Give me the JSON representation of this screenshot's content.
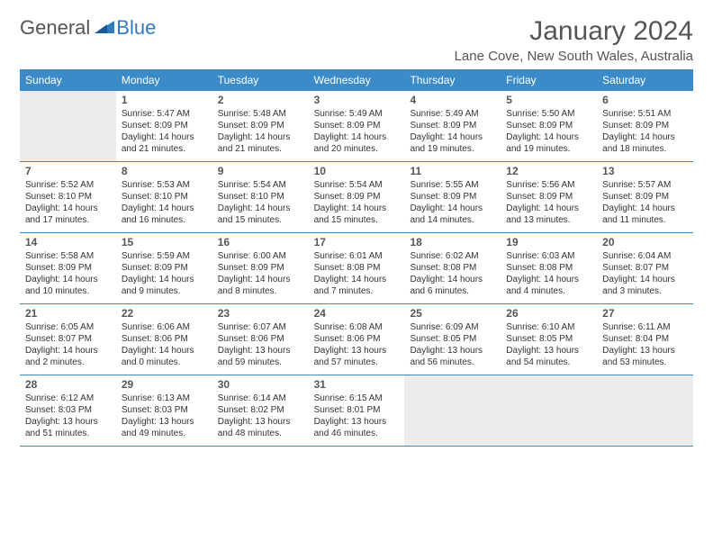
{
  "logo": {
    "general": "General",
    "blue": "Blue"
  },
  "title": "January 2024",
  "location": "Lane Cove, New South Wales, Australia",
  "colors": {
    "header_bg": "#3b8bc8",
    "header_text": "#ffffff",
    "row_border": "#3b8bc8",
    "blank_bg": "#ececec",
    "page_bg": "#ffffff",
    "title_color": "#555555",
    "logo_gray": "#555555",
    "logo_blue": "#2f7bbf",
    "text_color": "#333333",
    "daynum_color": "#555555"
  },
  "typography": {
    "title_fontsize": 30,
    "location_fontsize": 15,
    "dayheader_fontsize": 12,
    "daynum_fontsize": 12,
    "body_fontsize": 10,
    "logo_fontsize": 22
  },
  "day_headers": [
    "Sunday",
    "Monday",
    "Tuesday",
    "Wednesday",
    "Thursday",
    "Friday",
    "Saturday"
  ],
  "weeks": [
    [
      {
        "blank": true
      },
      {
        "day": "1",
        "sunrise": "Sunrise: 5:47 AM",
        "sunset": "Sunset: 8:09 PM",
        "daylight1": "Daylight: 14 hours",
        "daylight2": "and 21 minutes."
      },
      {
        "day": "2",
        "sunrise": "Sunrise: 5:48 AM",
        "sunset": "Sunset: 8:09 PM",
        "daylight1": "Daylight: 14 hours",
        "daylight2": "and 21 minutes."
      },
      {
        "day": "3",
        "sunrise": "Sunrise: 5:49 AM",
        "sunset": "Sunset: 8:09 PM",
        "daylight1": "Daylight: 14 hours",
        "daylight2": "and 20 minutes."
      },
      {
        "day": "4",
        "sunrise": "Sunrise: 5:49 AM",
        "sunset": "Sunset: 8:09 PM",
        "daylight1": "Daylight: 14 hours",
        "daylight2": "and 19 minutes."
      },
      {
        "day": "5",
        "sunrise": "Sunrise: 5:50 AM",
        "sunset": "Sunset: 8:09 PM",
        "daylight1": "Daylight: 14 hours",
        "daylight2": "and 19 minutes."
      },
      {
        "day": "6",
        "sunrise": "Sunrise: 5:51 AM",
        "sunset": "Sunset: 8:09 PM",
        "daylight1": "Daylight: 14 hours",
        "daylight2": "and 18 minutes."
      }
    ],
    [
      {
        "day": "7",
        "sunrise": "Sunrise: 5:52 AM",
        "sunset": "Sunset: 8:10 PM",
        "daylight1": "Daylight: 14 hours",
        "daylight2": "and 17 minutes."
      },
      {
        "day": "8",
        "sunrise": "Sunrise: 5:53 AM",
        "sunset": "Sunset: 8:10 PM",
        "daylight1": "Daylight: 14 hours",
        "daylight2": "and 16 minutes."
      },
      {
        "day": "9",
        "sunrise": "Sunrise: 5:54 AM",
        "sunset": "Sunset: 8:10 PM",
        "daylight1": "Daylight: 14 hours",
        "daylight2": "and 15 minutes."
      },
      {
        "day": "10",
        "sunrise": "Sunrise: 5:54 AM",
        "sunset": "Sunset: 8:09 PM",
        "daylight1": "Daylight: 14 hours",
        "daylight2": "and 15 minutes."
      },
      {
        "day": "11",
        "sunrise": "Sunrise: 5:55 AM",
        "sunset": "Sunset: 8:09 PM",
        "daylight1": "Daylight: 14 hours",
        "daylight2": "and 14 minutes."
      },
      {
        "day": "12",
        "sunrise": "Sunrise: 5:56 AM",
        "sunset": "Sunset: 8:09 PM",
        "daylight1": "Daylight: 14 hours",
        "daylight2": "and 13 minutes."
      },
      {
        "day": "13",
        "sunrise": "Sunrise: 5:57 AM",
        "sunset": "Sunset: 8:09 PM",
        "daylight1": "Daylight: 14 hours",
        "daylight2": "and 11 minutes."
      }
    ],
    [
      {
        "day": "14",
        "sunrise": "Sunrise: 5:58 AM",
        "sunset": "Sunset: 8:09 PM",
        "daylight1": "Daylight: 14 hours",
        "daylight2": "and 10 minutes."
      },
      {
        "day": "15",
        "sunrise": "Sunrise: 5:59 AM",
        "sunset": "Sunset: 8:09 PM",
        "daylight1": "Daylight: 14 hours",
        "daylight2": "and 9 minutes."
      },
      {
        "day": "16",
        "sunrise": "Sunrise: 6:00 AM",
        "sunset": "Sunset: 8:09 PM",
        "daylight1": "Daylight: 14 hours",
        "daylight2": "and 8 minutes."
      },
      {
        "day": "17",
        "sunrise": "Sunrise: 6:01 AM",
        "sunset": "Sunset: 8:08 PM",
        "daylight1": "Daylight: 14 hours",
        "daylight2": "and 7 minutes."
      },
      {
        "day": "18",
        "sunrise": "Sunrise: 6:02 AM",
        "sunset": "Sunset: 8:08 PM",
        "daylight1": "Daylight: 14 hours",
        "daylight2": "and 6 minutes."
      },
      {
        "day": "19",
        "sunrise": "Sunrise: 6:03 AM",
        "sunset": "Sunset: 8:08 PM",
        "daylight1": "Daylight: 14 hours",
        "daylight2": "and 4 minutes."
      },
      {
        "day": "20",
        "sunrise": "Sunrise: 6:04 AM",
        "sunset": "Sunset: 8:07 PM",
        "daylight1": "Daylight: 14 hours",
        "daylight2": "and 3 minutes."
      }
    ],
    [
      {
        "day": "21",
        "sunrise": "Sunrise: 6:05 AM",
        "sunset": "Sunset: 8:07 PM",
        "daylight1": "Daylight: 14 hours",
        "daylight2": "and 2 minutes."
      },
      {
        "day": "22",
        "sunrise": "Sunrise: 6:06 AM",
        "sunset": "Sunset: 8:06 PM",
        "daylight1": "Daylight: 14 hours",
        "daylight2": "and 0 minutes."
      },
      {
        "day": "23",
        "sunrise": "Sunrise: 6:07 AM",
        "sunset": "Sunset: 8:06 PM",
        "daylight1": "Daylight: 13 hours",
        "daylight2": "and 59 minutes."
      },
      {
        "day": "24",
        "sunrise": "Sunrise: 6:08 AM",
        "sunset": "Sunset: 8:06 PM",
        "daylight1": "Daylight: 13 hours",
        "daylight2": "and 57 minutes."
      },
      {
        "day": "25",
        "sunrise": "Sunrise: 6:09 AM",
        "sunset": "Sunset: 8:05 PM",
        "daylight1": "Daylight: 13 hours",
        "daylight2": "and 56 minutes."
      },
      {
        "day": "26",
        "sunrise": "Sunrise: 6:10 AM",
        "sunset": "Sunset: 8:05 PM",
        "daylight1": "Daylight: 13 hours",
        "daylight2": "and 54 minutes."
      },
      {
        "day": "27",
        "sunrise": "Sunrise: 6:11 AM",
        "sunset": "Sunset: 8:04 PM",
        "daylight1": "Daylight: 13 hours",
        "daylight2": "and 53 minutes."
      }
    ],
    [
      {
        "day": "28",
        "sunrise": "Sunrise: 6:12 AM",
        "sunset": "Sunset: 8:03 PM",
        "daylight1": "Daylight: 13 hours",
        "daylight2": "and 51 minutes."
      },
      {
        "day": "29",
        "sunrise": "Sunrise: 6:13 AM",
        "sunset": "Sunset: 8:03 PM",
        "daylight1": "Daylight: 13 hours",
        "daylight2": "and 49 minutes."
      },
      {
        "day": "30",
        "sunrise": "Sunrise: 6:14 AM",
        "sunset": "Sunset: 8:02 PM",
        "daylight1": "Daylight: 13 hours",
        "daylight2": "and 48 minutes."
      },
      {
        "day": "31",
        "sunrise": "Sunrise: 6:15 AM",
        "sunset": "Sunset: 8:01 PM",
        "daylight1": "Daylight: 13 hours",
        "daylight2": "and 46 minutes."
      },
      {
        "blank": true
      },
      {
        "blank": true
      },
      {
        "blank": true
      }
    ]
  ]
}
